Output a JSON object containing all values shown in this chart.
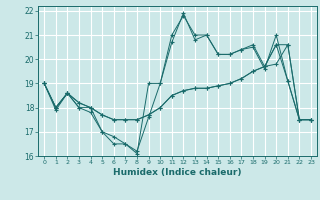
{
  "title": "",
  "xlabel": "Humidex (Indice chaleur)",
  "ylabel": "",
  "bg_color": "#cce8e8",
  "grid_color": "#ffffff",
  "line_color": "#1a6b6b",
  "xlim": [
    -0.5,
    23.5
  ],
  "ylim": [
    16,
    22.2
  ],
  "xticks": [
    0,
    1,
    2,
    3,
    4,
    5,
    6,
    7,
    8,
    9,
    10,
    11,
    12,
    13,
    14,
    15,
    16,
    17,
    18,
    19,
    20,
    21,
    22,
    23
  ],
  "yticks": [
    16,
    17,
    18,
    19,
    20,
    21,
    22
  ],
  "series": [
    [
      19.0,
      17.9,
      18.6,
      18.0,
      18.0,
      17.0,
      16.5,
      16.5,
      16.2,
      17.6,
      19.0,
      20.7,
      21.9,
      20.8,
      21.0,
      20.2,
      20.2,
      20.4,
      20.5,
      19.6,
      21.0,
      19.1,
      17.5,
      17.5
    ],
    [
      19.0,
      18.0,
      18.6,
      18.0,
      17.8,
      17.0,
      16.8,
      16.5,
      16.1,
      19.0,
      19.0,
      21.0,
      21.8,
      21.0,
      21.0,
      20.2,
      20.2,
      20.4,
      20.6,
      19.7,
      20.6,
      19.1,
      17.5,
      17.5
    ],
    [
      19.0,
      18.0,
      18.6,
      18.2,
      18.0,
      17.7,
      17.5,
      17.5,
      17.5,
      17.7,
      18.0,
      18.5,
      18.7,
      18.8,
      18.8,
      18.9,
      19.0,
      19.2,
      19.5,
      19.7,
      19.8,
      20.6,
      17.5,
      17.5
    ],
    [
      19.0,
      18.0,
      18.6,
      18.2,
      18.0,
      17.7,
      17.5,
      17.5,
      17.5,
      17.7,
      18.0,
      18.5,
      18.7,
      18.8,
      18.8,
      18.9,
      19.0,
      19.2,
      19.5,
      19.7,
      20.6,
      20.6,
      17.5,
      17.5
    ]
  ]
}
